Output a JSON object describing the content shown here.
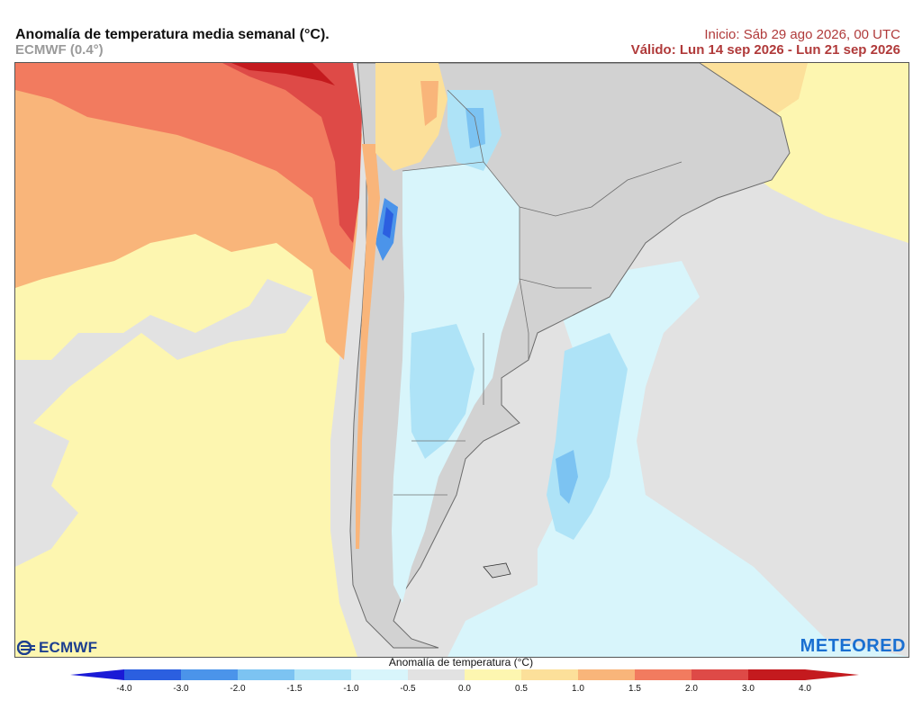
{
  "header": {
    "title": "Anomalía de temperatura media semanal (°C).",
    "model": "ECMWF (0.4°)",
    "init": "Inicio: Sáb 29 ago 2026, 00 UTC",
    "valid": "Válido: Lun 14 sep 2026 - Lun 21 sep 2026"
  },
  "logos": {
    "left": "ECMWF",
    "right": "METEORED"
  },
  "colorbar": {
    "label": "Anomalía de temperatura (°C)",
    "ticks": [
      "-4.0",
      "-3.0",
      "-2.0",
      "-1.5",
      "-1.0",
      "-0.5",
      "0.0",
      "0.5",
      "1.0",
      "1.5",
      "2.0",
      "3.0",
      "4.0"
    ],
    "colors": [
      "#1a1ad6",
      "#2b5fe0",
      "#4b94ea",
      "#7cc3f2",
      "#aee3f7",
      "#d8f5fb",
      "#e2e2e2",
      "#fdf6b0",
      "#fce09a",
      "#f9b57a",
      "#f27b5f",
      "#de4a47",
      "#c41a1e"
    ]
  },
  "map": {
    "background": "#e2e2e2",
    "land_shade": "#cfcfcf",
    "border_color": "#666666"
  }
}
